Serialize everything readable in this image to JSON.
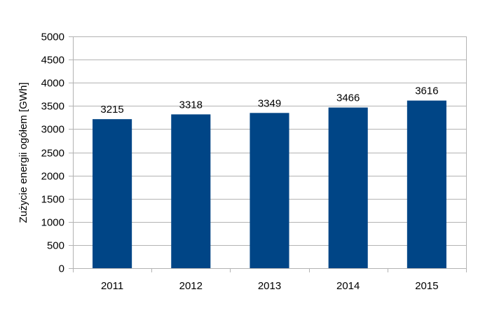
{
  "chart_data": {
    "type": "bar",
    "title": "",
    "xlabel": "",
    "ylabel": "Zużycie energii ogółem [GWh]",
    "categories": [
      "2011",
      "2012",
      "2013",
      "2014",
      "2015"
    ],
    "values": [
      3215,
      3318,
      3349,
      3466,
      3616
    ],
    "data_labels": [
      "3215",
      "3318",
      "3349",
      "3466",
      "3616"
    ],
    "ylim": [
      0,
      5000
    ],
    "yticks": [
      0,
      500,
      1000,
      1500,
      2000,
      2500,
      3000,
      3500,
      4000,
      4500,
      5000
    ],
    "ytick_labels": [
      "0",
      "500",
      "1000",
      "1500",
      "2000",
      "2500",
      "3000",
      "3500",
      "4000",
      "4500",
      "5000"
    ],
    "grid": true,
    "legend": "none",
    "bar_color": "#004586",
    "grid_color": "#b3b3b3"
  }
}
